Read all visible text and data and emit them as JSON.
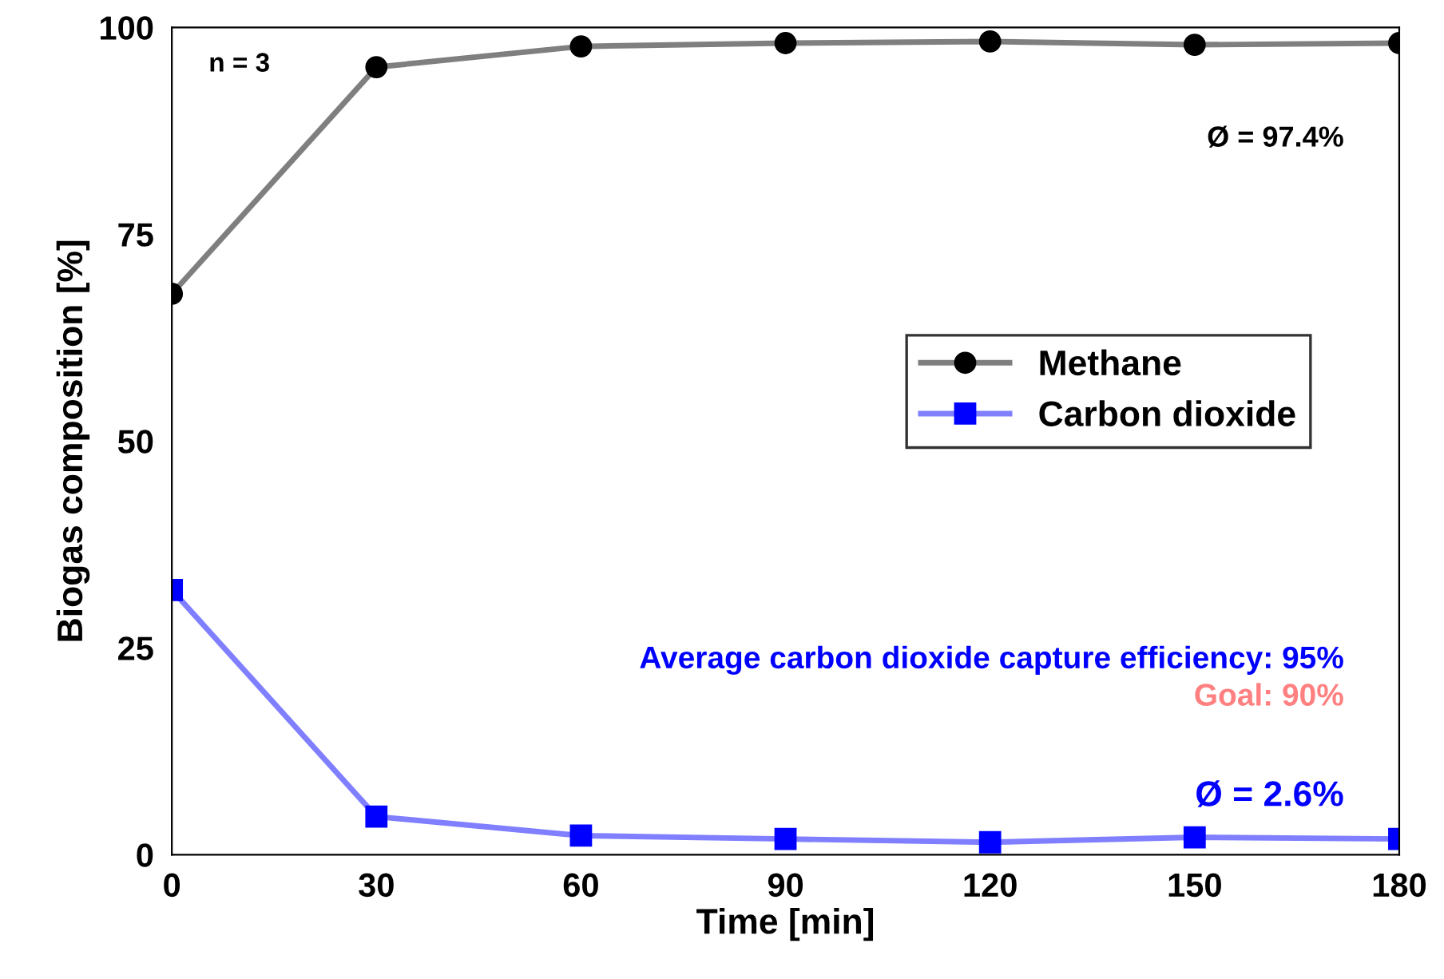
{
  "chart_data": {
    "type": "line",
    "xlabel": "Time [min]",
    "ylabel": "Biogas composition [%]",
    "x": [
      0,
      30,
      60,
      90,
      120,
      150,
      180
    ],
    "series": [
      {
        "name": "Methane",
        "color": "#000000",
        "marker": "circle",
        "values": [
          67.8,
          95.2,
          97.7,
          98.1,
          98.3,
          97.9,
          98.1
        ]
      },
      {
        "name": "Carbon dioxide",
        "color": "#0000ff",
        "marker": "square",
        "values": [
          32.0,
          4.6,
          2.3,
          1.9,
          1.5,
          2.1,
          1.9
        ]
      }
    ],
    "xlim": [
      0,
      180
    ],
    "xticks": [
      0,
      30,
      60,
      90,
      120,
      150,
      180
    ],
    "ylim": [
      0,
      100
    ],
    "yticks": [
      0,
      25,
      50,
      75,
      100
    ],
    "grid": false,
    "legend": "right",
    "annotations": [
      "n = 3",
      "Ø = 97.4%",
      "Average carbon dioxide capture efficiency: 95%",
      "Goal: 90%",
      "Ø = 2.6%"
    ]
  }
}
